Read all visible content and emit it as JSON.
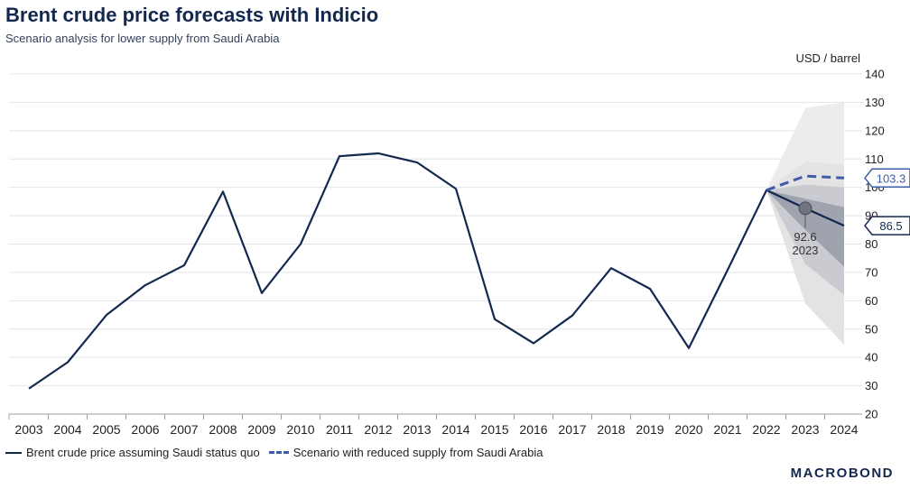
{
  "header": {
    "title": "Brent crude price forecasts with Indicio",
    "subtitle": "Scenario analysis for lower supply from Saudi Arabia"
  },
  "brand": "MACROBOND",
  "chart_data": {
    "type": "line",
    "title": "Brent crude price forecasts with Indicio",
    "subtitle": "Scenario analysis for lower supply from Saudi Arabia",
    "unit_label": "USD / barrel",
    "x": [
      "2003",
      "2004",
      "2005",
      "2006",
      "2007",
      "2008",
      "2009",
      "2010",
      "2011",
      "2012",
      "2013",
      "2014",
      "2015",
      "2016",
      "2017",
      "2018",
      "2019",
      "2020",
      "2021",
      "2022",
      "2023",
      "2024"
    ],
    "yticks": [
      20,
      30,
      40,
      50,
      60,
      70,
      80,
      90,
      100,
      110,
      120,
      130,
      140
    ],
    "ylim": [
      20,
      140
    ],
    "ylabel_side": "right",
    "grid": true,
    "series": [
      {
        "name": "Brent crude price assuming Saudi status quo",
        "style": "solid",
        "color": "#13284f",
        "values": [
          29.0,
          38.3,
          55.0,
          65.5,
          72.5,
          98.5,
          62.7,
          80.0,
          111.0,
          112.0,
          108.8,
          99.5,
          53.5,
          45.0,
          54.8,
          71.5,
          64.2,
          43.3,
          70.9,
          99.0,
          92.6,
          86.5
        ]
      },
      {
        "name": "Scenario with reduced supply from Saudi Arabia",
        "style": "dashed",
        "color": "#3f5ca7",
        "x": [
          "2022",
          "2023",
          "2024"
        ],
        "values": [
          99.0,
          104.0,
          103.3
        ]
      }
    ],
    "forecast_bands": [
      {
        "label": "outer scenario band",
        "color": "#ececec",
        "x": [
          "2022",
          "2023",
          "2024"
        ],
        "upper": [
          99.0,
          128.0,
          130.0
        ],
        "lower": [
          99.0,
          87.0,
          83.0
        ]
      },
      {
        "label": "outer status-quo band",
        "color": "#e3e3e3",
        "x": [
          "2022",
          "2023",
          "2024"
        ],
        "upper": [
          99.0,
          109.0,
          108.0
        ],
        "lower": [
          99.0,
          59.0,
          44.5
        ]
      },
      {
        "label": "inner status-quo band",
        "color": "#c9cbd0",
        "x": [
          "2022",
          "2023",
          "2024"
        ],
        "upper": [
          99.0,
          101.0,
          100.0
        ],
        "lower": [
          99.0,
          73.0,
          62.0
        ]
      },
      {
        "label": "core status-quo band",
        "color": "#9ea3ad",
        "x": [
          "2022",
          "2023",
          "2024"
        ],
        "upper": [
          99.0,
          96.0,
          93.0
        ],
        "lower": [
          99.0,
          85.0,
          72.0
        ]
      }
    ],
    "annotations": [
      {
        "x": "2023",
        "y": 92.6,
        "label_value": "92.6",
        "label_year": "2023"
      }
    ],
    "end_labels": [
      {
        "series": "Scenario with reduced supply from Saudi Arabia",
        "value": "103.3",
        "y": 103.3,
        "color": "#3f5ca7"
      },
      {
        "series": "Brent crude price assuming Saudi status quo",
        "value": "86.5",
        "y": 86.5,
        "color": "#13284f"
      }
    ],
    "legend": "bottom-left"
  }
}
